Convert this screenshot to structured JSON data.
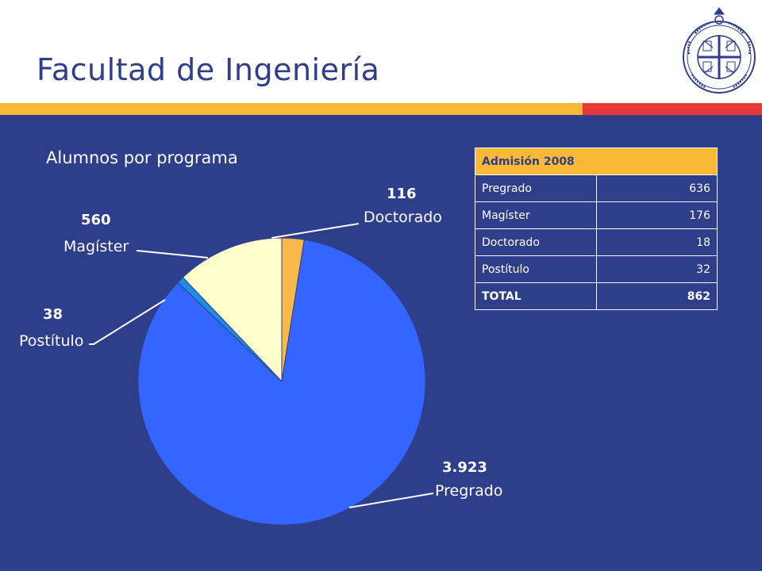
{
  "header": {
    "title": "Facultad de Ingeniería",
    "seal_text": "PONTIFICIA UNIVERSIDAD CATÓLICA DE CHILE"
  },
  "colors": {
    "title": "#2e3e8c",
    "background": "#2e3e8a",
    "band_yellow": "#f9b838",
    "band_red": "#e63a3a",
    "table_header": "#f9b936"
  },
  "chart_data": {
    "type": "pie",
    "title": "Alumnos por programa",
    "start_angle_deg": 0,
    "direction": "clockwise",
    "slices": [
      {
        "label": "Doctorado",
        "value_label": "116",
        "value": 116,
        "color": "#f9b84a"
      },
      {
        "label": "Pregrado",
        "value_label": "3.923",
        "value": 3923,
        "color": "#3366ff"
      },
      {
        "label": "Postítulo",
        "value_label": "38",
        "value": 38,
        "color": "#1f8ee0"
      },
      {
        "label": "Magíster",
        "value_label": "560",
        "value": 560,
        "color": "#ffffcc"
      }
    ]
  },
  "table": {
    "title": "Admisión 2008",
    "rows": [
      {
        "label": "Pregrado",
        "value": "636"
      },
      {
        "label": "Magíster",
        "value": "176"
      },
      {
        "label": "Doctorado",
        "value": "18"
      },
      {
        "label": "Postítulo",
        "value": "32"
      }
    ],
    "total": {
      "label": "TOTAL",
      "value": "862"
    }
  }
}
